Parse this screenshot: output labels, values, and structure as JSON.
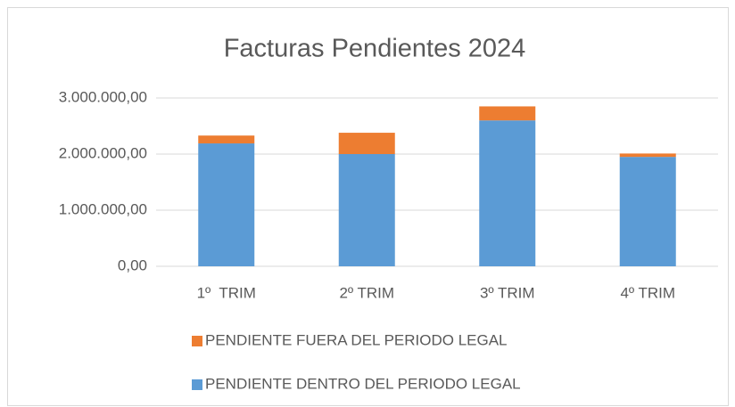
{
  "chart_data": {
    "type": "stacked_bar",
    "title": "Facturas Pendientes 2024",
    "categories": [
      "1º  TRIM",
      "2º TRIM",
      "3º TRIM",
      "4º TRIM"
    ],
    "series": [
      {
        "name": "PENDIENTE DENTRO DEL PERIODO LEGAL",
        "color": "#5b9bd5",
        "values": [
          2190000,
          2000000,
          2600000,
          1950000
        ]
      },
      {
        "name": "PENDIENTE FUERA DEL PERIODO LEGAL",
        "color": "#ed7d31",
        "values": [
          140000,
          380000,
          250000,
          60000
        ]
      }
    ],
    "ylim": [
      0,
      3000000
    ],
    "yticks": [
      {
        "value": 0,
        "label": "0,00"
      },
      {
        "value": 1000000,
        "label": "1.000.000,00"
      },
      {
        "value": 2000000,
        "label": "2.000.000,00"
      },
      {
        "value": 3000000,
        "label": "3.000.000,00"
      }
    ],
    "grid": true,
    "legend": "bottom"
  }
}
